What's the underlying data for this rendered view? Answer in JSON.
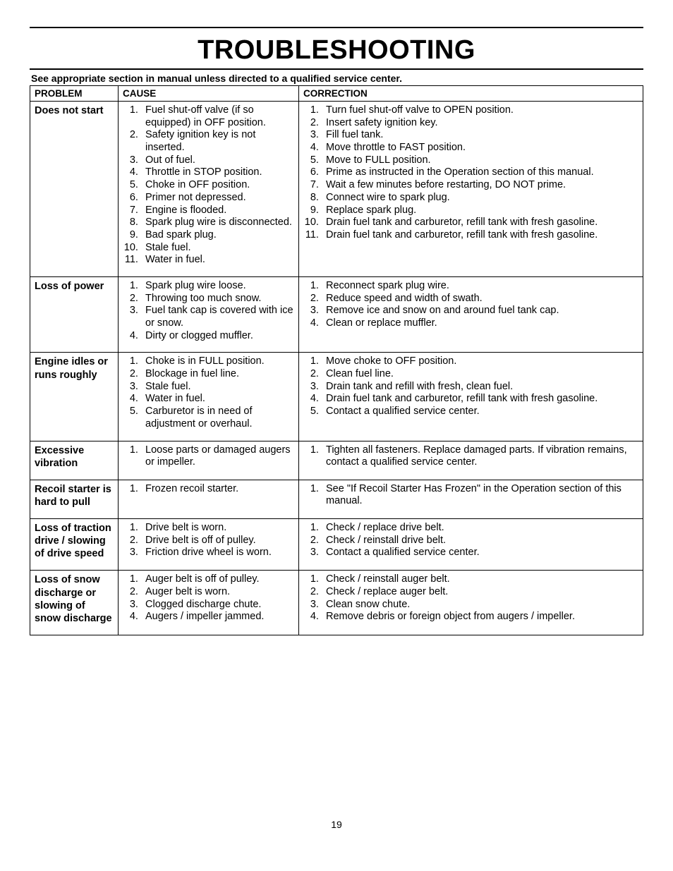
{
  "title": "TROUBLESHOOTING",
  "lead": "See appropriate section in manual unless directed to a qualified service center.",
  "headers": {
    "problem": "PROBLEM",
    "cause": "CAUSE",
    "correction": "CORRECTION"
  },
  "page_number": "19",
  "rows": [
    {
      "problem": "Does not start",
      "causes": [
        "Fuel shut-off valve (if so equipped) in OFF position.",
        "Safety ignition key is not inserted.",
        "Out of fuel.",
        "Throttle in STOP position.",
        "Choke in OFF position.",
        "Primer not depressed.",
        "Engine is flooded.",
        "Spark plug wire is disconnected.",
        "Bad spark plug.",
        "Stale fuel.",
        "Water in fuel."
      ],
      "corrections": [
        "Turn fuel shut-off valve to OPEN position.\n",
        "Insert safety ignition key.\n",
        "Fill fuel tank.",
        "Move throttle to FAST position.",
        "Move to FULL position.",
        "Prime as instructed in the Operation section of this manual.",
        "Wait a few minutes before restarting, DO NOT prime.",
        "Connect wire to spark plug.\n",
        "Replace spark plug.",
        "Drain fuel tank and carburetor, refill tank with fresh gasoline.",
        "Drain fuel tank and carburetor, refill tank with fresh gasoline."
      ]
    },
    {
      "problem": "Loss of power",
      "causes": [
        "Spark plug wire loose.",
        "Throwing too much snow.",
        "Fuel tank cap is covered with ice or snow.",
        "Dirty or clogged muffler."
      ],
      "corrections": [
        "Reconnect spark plug wire.",
        "Reduce speed and width of swath.",
        "Remove ice and snow on and around fuel tank cap.\n",
        "Clean or replace muffler."
      ]
    },
    {
      "problem": "Engine idles or runs roughly",
      "causes": [
        "Choke is in FULL position.",
        "Blockage in fuel line.",
        "Stale fuel.",
        "Water in fuel.",
        "Carburetor is in need of adjustment or overhaul."
      ],
      "corrections": [
        "Move choke to OFF position.",
        "Clean fuel line.",
        "Drain tank and refill with fresh, clean fuel.",
        "Drain fuel tank and carburetor, refill tank with fresh gasoline.",
        "Contact a qualified service center."
      ]
    },
    {
      "problem": "Excessive vibration",
      "causes": [
        "Loose parts or damaged augers or impeller."
      ],
      "corrections": [
        "Tighten all fasteners.  Replace damaged parts. If vibration remains, contact a qualified service center."
      ]
    },
    {
      "problem": "Recoil starter is hard to pull",
      "causes": [
        "Frozen recoil starter."
      ],
      "corrections": [
        "See \"If Recoil Starter Has Frozen\" in the Operation section of this manual."
      ]
    },
    {
      "problem": "Loss of traction drive / slowing of drive speed",
      "causes": [
        "Drive belt is worn.",
        "Drive belt is off of pulley.",
        "Friction drive wheel is worn."
      ],
      "corrections": [
        "Check / replace drive belt.",
        "Check / reinstall drive belt.",
        "Contact a qualified service center."
      ]
    },
    {
      "problem": "Loss of snow discharge or slowing of snow discharge",
      "causes": [
        "Auger belt is off of pulley.",
        "Auger belt is worn.",
        "Clogged discharge chute.",
        "Augers / impeller jammed."
      ],
      "corrections": [
        "Check / reinstall auger belt.",
        "Check / replace auger belt.",
        "Clean snow chute.",
        "Remove debris or foreign object from augers / impeller."
      ]
    }
  ]
}
